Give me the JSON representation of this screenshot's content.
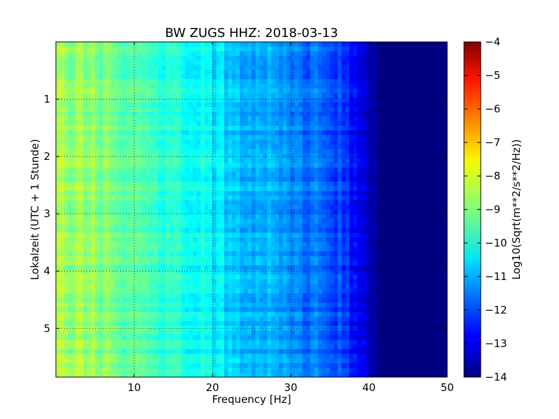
{
  "chart_data": {
    "type": "heatmap",
    "title": "BW ZUGS HHZ: 2018-03-13",
    "xlabel": "Frequency [Hz]",
    "ylabel": "Lokalzeit (UTC + 1 Stunde)",
    "colorbar_label": "Log10(Sqrt(m**2/s**2/Hz))",
    "colormap": "jet",
    "xlim": [
      0,
      50
    ],
    "ylim": [
      5.85,
      0
    ],
    "x_ticks": [
      10,
      20,
      30,
      40,
      50
    ],
    "y_ticks": [
      1,
      2,
      3,
      4,
      5
    ],
    "color_range": [
      -14,
      -4
    ],
    "colorbar_ticks": [
      -4,
      -5,
      -6,
      -7,
      -8,
      -9,
      -10,
      -11,
      -12,
      -13,
      -14
    ],
    "grid": true,
    "values_profile": {
      "frequency_hz": [
        0,
        5,
        10,
        15,
        20,
        25,
        30,
        35,
        38,
        40,
        41,
        50
      ],
      "log10_psd": [
        -8.6,
        -8.9,
        -9.3,
        -9.9,
        -10.4,
        -10.9,
        -11.3,
        -11.9,
        -12.5,
        -13.5,
        -14,
        -14
      ]
    }
  }
}
